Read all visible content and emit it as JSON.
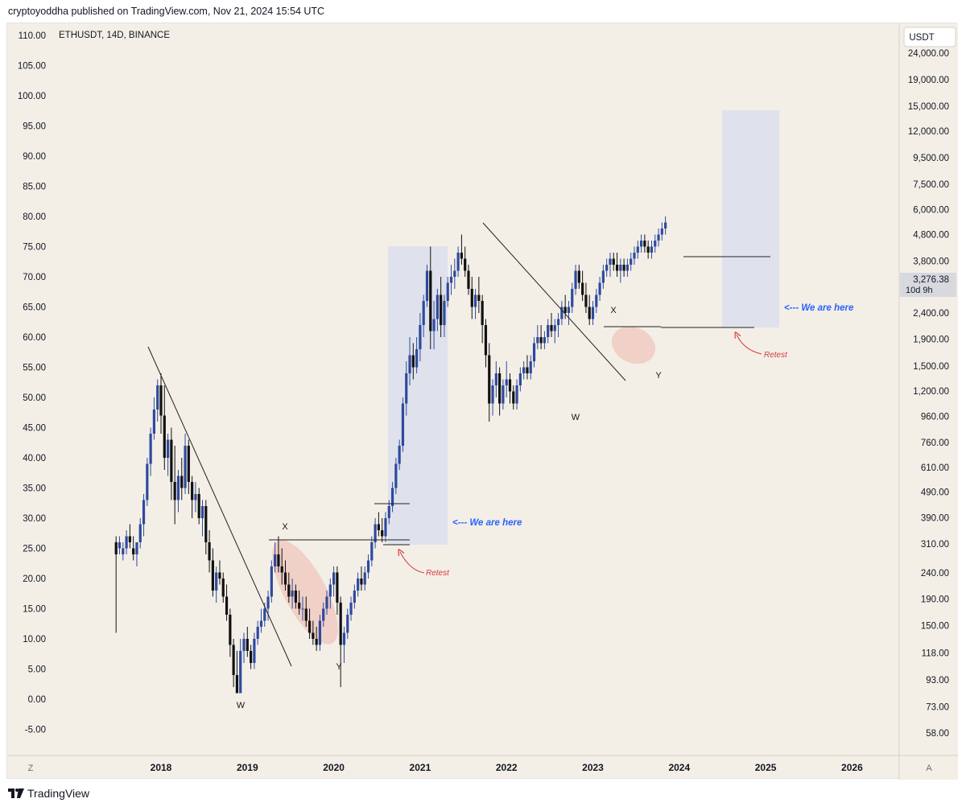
{
  "header": {
    "published_text": "cryptoyoddha published on TradingView.com, Nov 21, 2024 15:54 UTC"
  },
  "colors": {
    "background": "#f3efe7",
    "candle_up": "#2e4a9e",
    "candle_down": "#111111",
    "target_box": "#dfe2ec",
    "highlight_ellipse": "#f0c8c0",
    "annotation_blue": "#2962ff",
    "annotation_red": "#d73a3a"
  },
  "chart_data": {
    "type": "candlestick",
    "symbol_label": "ETHUSDT, 14D, BINANCE",
    "currency_label": "USDT",
    "left_axis": {
      "ticks": [
        "110.00",
        "105.00",
        "100.00",
        "95.00",
        "90.00",
        "85.00",
        "80.00",
        "75.00",
        "70.00",
        "65.00",
        "60.00",
        "55.00",
        "50.00",
        "45.00",
        "40.00",
        "35.00",
        "30.00",
        "25.00",
        "20.00",
        "15.00",
        "10.00",
        "5.00",
        "0.00",
        "-5.00"
      ],
      "range": [
        -7,
        112
      ]
    },
    "right_axis": {
      "scale": "log",
      "ticks": [
        "24,000.00",
        "19,000.00",
        "15,000.00",
        "12,000.00",
        "9,500.00",
        "7,500.00",
        "6,000.00",
        "4,800.00",
        "3,800.00",
        "3,000.00",
        "2,400.00",
        "1,900.00",
        "1,500.00",
        "1,200.00",
        "960.00",
        "760.00",
        "610.00",
        "490.00",
        "390.00",
        "310.00",
        "240.00",
        "190.00",
        "150.00",
        "118.00",
        "93.00",
        "73.00",
        "58.00"
      ],
      "last_price": "3,276.38",
      "countdown": "10d 9h"
    },
    "x_axis": {
      "ticks": [
        "2018",
        "2019",
        "2020",
        "2021",
        "2022",
        "2023",
        "2024",
        "2025",
        "2026"
      ],
      "range": [
        2017.42,
        2026.6
      ]
    },
    "scroll_buttons": [
      "Z",
      "A"
    ],
    "annotations": {
      "we_are_here": [
        "<--- We are here",
        "<--- We are here"
      ],
      "retest": [
        "Retest",
        "Retest"
      ],
      "wave_labels_2018_2020": [
        "W",
        "X",
        "Y"
      ],
      "wave_labels_2022_2023": [
        "W",
        "X",
        "Y"
      ]
    },
    "candles_left_scale": [
      [
        2017.48,
        26,
        27,
        11,
        24
      ],
      [
        2017.52,
        25,
        27,
        24,
        26
      ],
      [
        2017.56,
        24,
        26,
        23,
        25
      ],
      [
        2017.6,
        25,
        28,
        24,
        27
      ],
      [
        2017.64,
        27,
        29,
        25,
        26
      ],
      [
        2017.68,
        25,
        27,
        23,
        24
      ],
      [
        2017.72,
        24,
        26,
        22,
        26
      ],
      [
        2017.76,
        26,
        30,
        25,
        29
      ],
      [
        2017.8,
        29,
        34,
        27,
        33
      ],
      [
        2017.84,
        33,
        40,
        32,
        39
      ],
      [
        2017.88,
        39,
        45,
        37,
        44
      ],
      [
        2017.92,
        44,
        50,
        43,
        48
      ],
      [
        2017.96,
        48,
        53,
        46,
        52
      ],
      [
        2018.0,
        52,
        54,
        44,
        47
      ],
      [
        2018.04,
        47,
        52,
        38,
        40
      ],
      [
        2018.08,
        40,
        44,
        37,
        43
      ],
      [
        2018.12,
        43,
        45,
        33,
        36
      ],
      [
        2018.16,
        36,
        42,
        29,
        33
      ],
      [
        2018.2,
        33,
        38,
        31,
        37
      ],
      [
        2018.24,
        37,
        40,
        33,
        35
      ],
      [
        2018.28,
        35,
        44,
        34,
        42
      ],
      [
        2018.32,
        42,
        43,
        34,
        36
      ],
      [
        2018.36,
        36,
        37,
        30,
        33
      ],
      [
        2018.4,
        33,
        36,
        31,
        34
      ],
      [
        2018.44,
        34,
        35,
        29,
        30
      ],
      [
        2018.48,
        30,
        33,
        27,
        32
      ],
      [
        2018.52,
        32,
        33,
        24,
        26
      ],
      [
        2018.56,
        26,
        28,
        21,
        23
      ],
      [
        2018.6,
        23,
        25,
        17,
        18
      ],
      [
        2018.64,
        18,
        22,
        16,
        21
      ],
      [
        2018.68,
        21,
        23,
        19,
        20
      ],
      [
        2018.72,
        20,
        21,
        16,
        17
      ],
      [
        2018.76,
        17,
        19,
        13,
        14
      ],
      [
        2018.8,
        14,
        15,
        7,
        9
      ],
      [
        2018.84,
        9,
        10,
        2,
        4
      ],
      [
        2018.88,
        4,
        8,
        1,
        1
      ],
      [
        2018.92,
        1,
        10,
        1,
        8
      ],
      [
        2018.96,
        8,
        11,
        6,
        10
      ],
      [
        2019.0,
        10,
        12,
        7,
        8
      ],
      [
        2019.04,
        8,
        9,
        5,
        6
      ],
      [
        2019.08,
        6,
        11,
        5,
        10
      ],
      [
        2019.12,
        10,
        13,
        9,
        12
      ],
      [
        2019.16,
        12,
        15,
        11,
        13
      ],
      [
        2019.2,
        13,
        16,
        12,
        15
      ],
      [
        2019.24,
        15,
        18,
        13,
        17
      ],
      [
        2019.28,
        17,
        23,
        16,
        22
      ],
      [
        2019.32,
        22,
        26,
        21,
        24
      ],
      [
        2019.36,
        24,
        27,
        21,
        22
      ],
      [
        2019.4,
        22,
        25,
        19,
        21
      ],
      [
        2019.44,
        21,
        23,
        18,
        19
      ],
      [
        2019.48,
        19,
        21,
        16,
        17
      ],
      [
        2019.52,
        17,
        20,
        15,
        18
      ],
      [
        2019.56,
        18,
        19,
        15,
        16
      ],
      [
        2019.6,
        16,
        18,
        14,
        15
      ],
      [
        2019.64,
        15,
        17,
        13,
        15
      ],
      [
        2019.68,
        15,
        17,
        12,
        13
      ],
      [
        2019.72,
        13,
        15,
        10,
        11
      ],
      [
        2019.76,
        11,
        13,
        9,
        10
      ],
      [
        2019.8,
        10,
        12,
        8,
        9
      ],
      [
        2019.84,
        9,
        14,
        8,
        13
      ],
      [
        2019.88,
        13,
        16,
        12,
        15
      ],
      [
        2019.92,
        15,
        18,
        14,
        17
      ],
      [
        2019.96,
        17,
        20,
        15,
        19
      ],
      [
        2020.0,
        19,
        22,
        17,
        21
      ],
      [
        2020.04,
        21,
        22,
        14,
        16
      ],
      [
        2020.08,
        16,
        17,
        2,
        9
      ],
      [
        2020.12,
        9,
        12,
        6,
        11
      ],
      [
        2020.16,
        11,
        15,
        10,
        14
      ],
      [
        2020.2,
        14,
        17,
        13,
        16
      ],
      [
        2020.24,
        16,
        19,
        15,
        18
      ],
      [
        2020.28,
        18,
        21,
        17,
        20
      ],
      [
        2020.32,
        20,
        22,
        18,
        19
      ],
      [
        2020.36,
        19,
        22,
        18,
        21
      ],
      [
        2020.4,
        21,
        24,
        20,
        23
      ],
      [
        2020.44,
        23,
        27,
        22,
        26
      ],
      [
        2020.48,
        26,
        30,
        25,
        29
      ],
      [
        2020.52,
        29,
        31,
        27,
        28
      ],
      [
        2020.56,
        28,
        30,
        26,
        27
      ],
      [
        2020.6,
        27,
        31,
        26,
        30
      ],
      [
        2020.64,
        30,
        33,
        29,
        32
      ],
      [
        2020.68,
        32,
        36,
        31,
        35
      ],
      [
        2020.72,
        35,
        40,
        34,
        39
      ],
      [
        2020.76,
        39,
        43,
        38,
        42
      ],
      [
        2020.8,
        42,
        50,
        41,
        49
      ],
      [
        2020.84,
        49,
        56,
        47,
        54
      ],
      [
        2020.88,
        54,
        60,
        52,
        57
      ],
      [
        2020.92,
        57,
        59,
        53,
        55
      ],
      [
        2020.96,
        55,
        60,
        54,
        58
      ],
      [
        2021.0,
        58,
        64,
        56,
        62
      ],
      [
        2021.04,
        62,
        67,
        60,
        66
      ],
      [
        2021.08,
        66,
        72,
        65,
        71
      ],
      [
        2021.12,
        71,
        75,
        58,
        61
      ],
      [
        2021.16,
        61,
        66,
        58,
        63
      ],
      [
        2021.2,
        63,
        68,
        61,
        67
      ],
      [
        2021.24,
        67,
        70,
        60,
        62
      ],
      [
        2021.28,
        62,
        67,
        60,
        66
      ],
      [
        2021.32,
        66,
        70,
        65,
        69
      ],
      [
        2021.36,
        69,
        72,
        67,
        70
      ],
      [
        2021.4,
        70,
        73,
        68,
        71
      ],
      [
        2021.44,
        71,
        75,
        70,
        74
      ],
      [
        2021.48,
        74,
        77,
        72,
        73
      ],
      [
        2021.52,
        73,
        75,
        70,
        71
      ],
      [
        2021.56,
        71,
        72,
        67,
        68
      ],
      [
        2021.6,
        68,
        70,
        63,
        65
      ],
      [
        2021.64,
        65,
        68,
        63,
        67
      ],
      [
        2021.68,
        67,
        70,
        64,
        66
      ],
      [
        2021.72,
        66,
        67,
        59,
        62
      ],
      [
        2021.76,
        62,
        63,
        55,
        57
      ],
      [
        2021.8,
        57,
        59,
        46,
        49
      ],
      [
        2021.84,
        49,
        53,
        47,
        52
      ],
      [
        2021.88,
        52,
        56,
        50,
        54
      ],
      [
        2021.92,
        54,
        55,
        47,
        49
      ],
      [
        2021.96,
        49,
        53,
        48,
        52
      ],
      [
        2022.0,
        52,
        56,
        50,
        53
      ],
      [
        2022.04,
        53,
        54,
        49,
        51
      ],
      [
        2022.08,
        51,
        52,
        48,
        49
      ],
      [
        2022.12,
        49,
        53,
        48,
        52
      ],
      [
        2022.16,
        52,
        55,
        51,
        54
      ],
      [
        2022.2,
        54,
        56,
        53,
        55
      ],
      [
        2022.24,
        55,
        57,
        53,
        54
      ],
      [
        2022.28,
        54,
        57,
        53,
        56
      ],
      [
        2022.32,
        56,
        60,
        55,
        59
      ],
      [
        2022.36,
        59,
        62,
        58,
        60
      ],
      [
        2022.4,
        60,
        62,
        58,
        59
      ],
      [
        2022.44,
        59,
        61,
        58,
        60
      ],
      [
        2022.48,
        60,
        63,
        59,
        62
      ],
      [
        2022.52,
        62,
        64,
        60,
        61
      ],
      [
        2022.56,
        61,
        63,
        59,
        62
      ],
      [
        2022.6,
        62,
        64,
        60,
        63
      ],
      [
        2022.64,
        63,
        66,
        62,
        65
      ],
      [
        2022.68,
        65,
        67,
        63,
        64
      ],
      [
        2022.72,
        64,
        66,
        62,
        65
      ],
      [
        2022.76,
        65,
        69,
        64,
        68
      ],
      [
        2022.8,
        68,
        72,
        67,
        71
      ],
      [
        2022.84,
        71,
        72,
        68,
        69
      ],
      [
        2022.88,
        69,
        71,
        66,
        67
      ],
      [
        2022.92,
        67,
        69,
        64,
        65
      ],
      [
        2022.96,
        65,
        67,
        62,
        63
      ],
      [
        2023.0,
        63,
        66,
        62,
        65
      ],
      [
        2023.04,
        65,
        68,
        64,
        67
      ],
      [
        2023.08,
        67,
        70,
        66,
        69
      ],
      [
        2023.12,
        69,
        72,
        68,
        71
      ],
      [
        2023.16,
        71,
        73,
        70,
        72
      ],
      [
        2023.2,
        72,
        74,
        70,
        73
      ],
      [
        2023.24,
        73,
        74,
        71,
        72
      ],
      [
        2023.28,
        72,
        74,
        70,
        71
      ],
      [
        2023.32,
        71,
        73,
        69,
        72
      ],
      [
        2023.36,
        72,
        73,
        70,
        71
      ],
      [
        2023.4,
        71,
        73,
        70,
        72
      ],
      [
        2023.44,
        72,
        74,
        71,
        73
      ],
      [
        2023.48,
        73,
        75,
        72,
        74
      ],
      [
        2023.52,
        74,
        76,
        73,
        75
      ],
      [
        2023.56,
        75,
        77,
        74,
        76
      ],
      [
        2023.6,
        76,
        77,
        74,
        75
      ],
      [
        2023.64,
        75,
        76,
        73,
        74
      ],
      [
        2023.68,
        74,
        76,
        73,
        75
      ],
      [
        2023.72,
        75,
        77,
        74,
        76
      ],
      [
        2023.76,
        76,
        78,
        75,
        77
      ],
      [
        2023.8,
        77,
        79,
        76,
        78
      ],
      [
        2023.84,
        78,
        80,
        77,
        79
      ]
    ]
  }
}
